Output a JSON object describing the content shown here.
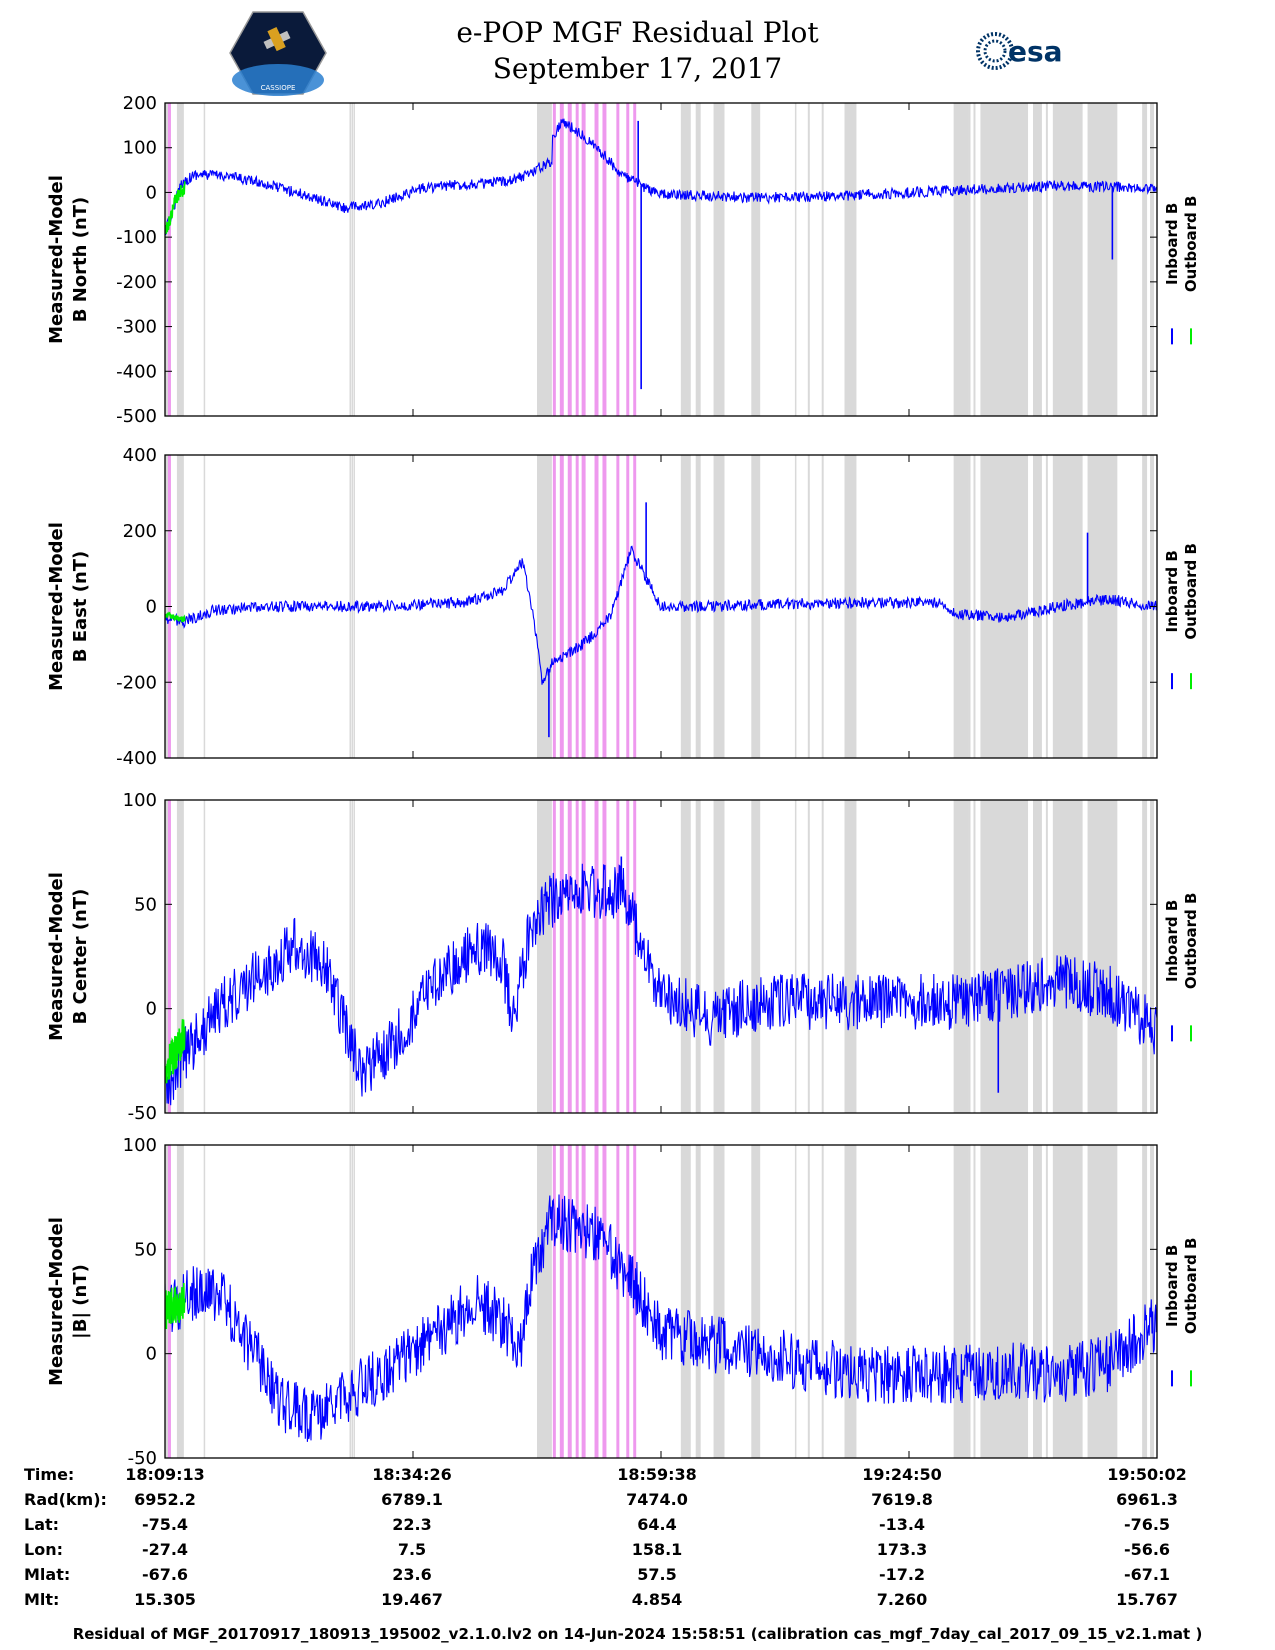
{
  "header": {
    "title": "e-POP MGF Residual Plot",
    "date": "September 17, 2017",
    "mission_logo_text": "CASSIOPE",
    "esa_logo_text": "esa"
  },
  "colors": {
    "inboard": "#0000ff",
    "outboard": "#00ee00",
    "gap_gray": "#d9d9d9",
    "gap_pink": "#ee99ee"
  },
  "chart_data": [
    {
      "type": "line",
      "ylabel_line1": "Measured-Model",
      "ylabel_line2": "B North (nT)",
      "ylim": [
        -500,
        200
      ],
      "yticks": [
        "200",
        "100",
        "0",
        "-100",
        "-200",
        "-300",
        "-400",
        "-500"
      ],
      "legend": [
        "Inboard B",
        "Outboard B"
      ],
      "series": [
        {
          "name": "Inboard B",
          "x": [
            0.0,
            0.008,
            0.016,
            0.03,
            0.06,
            0.1,
            0.14,
            0.18,
            0.21,
            0.24,
            0.26,
            0.3,
            0.33,
            0.36,
            0.39,
            0.37,
            0.385,
            0.4,
            0.42,
            0.44,
            0.46,
            0.48,
            0.5,
            0.55,
            0.6,
            0.68,
            0.75,
            0.8,
            0.85,
            0.9,
            0.95,
            1.0
          ],
          "y": [
            -90,
            -40,
            20,
            40,
            38,
            20,
            -5,
            -35,
            -30,
            -5,
            10,
            18,
            20,
            35,
            70,
            40,
            100,
            160,
            130,
            90,
            40,
            15,
            -5,
            -8,
            -12,
            -8,
            0,
            5,
            10,
            15,
            12,
            8
          ],
          "noise": 12
        },
        {
          "name": "Outboard B",
          "x": [
            0.0,
            0.005,
            0.01,
            0.015,
            0.02
          ],
          "y": [
            -90,
            -60,
            -20,
            0,
            10
          ],
          "noise": 15
        }
      ],
      "spikes": [
        {
          "x": 0.48,
          "y": -440
        },
        {
          "x": 0.477,
          "y": 160
        },
        {
          "x": 0.955,
          "y": -150
        }
      ]
    },
    {
      "type": "line",
      "ylabel_line1": "Measured-Model",
      "ylabel_line2": "B East (nT)",
      "ylim": [
        -400,
        400
      ],
      "yticks": [
        "400",
        "200",
        "0",
        "-200",
        "-400"
      ],
      "legend": [
        "Inboard B",
        "Outboard B"
      ],
      "series": [
        {
          "name": "Inboard B",
          "x": [
            0.0,
            0.02,
            0.05,
            0.1,
            0.2,
            0.3,
            0.34,
            0.36,
            0.37,
            0.38,
            0.39,
            0.41,
            0.43,
            0.45,
            0.47,
            0.49,
            0.5,
            0.55,
            0.6,
            0.7,
            0.78,
            0.8,
            0.85,
            0.9,
            0.95,
            1.0
          ],
          "y": [
            -30,
            -40,
            -10,
            0,
            0,
            10,
            40,
            120,
            0,
            -200,
            -150,
            -120,
            -80,
            -20,
            150,
            50,
            0,
            0,
            5,
            10,
            10,
            -20,
            -30,
            0,
            20,
            0
          ],
          "noise": 15
        },
        {
          "name": "Outboard B",
          "x": [
            0.0,
            0.01,
            0.02
          ],
          "y": [
            -20,
            -30,
            -35
          ],
          "noise": 8
        }
      ],
      "spikes": [
        {
          "x": 0.387,
          "y": -345
        },
        {
          "x": 0.485,
          "y": 275
        },
        {
          "x": 0.93,
          "y": 195
        }
      ]
    },
    {
      "type": "line",
      "ylabel_line1": "Measured-Model",
      "ylabel_line2": "B Center (nT)",
      "ylim": [
        -55,
        100
      ],
      "yticks": [
        "100",
        "50",
        "0",
        "-50"
      ],
      "legend": [
        "Inboard B",
        "Outboard B"
      ],
      "series": [
        {
          "name": "Inboard B",
          "x": [
            0.0,
            0.02,
            0.06,
            0.1,
            0.13,
            0.16,
            0.19,
            0.2,
            0.24,
            0.28,
            0.32,
            0.34,
            0.35,
            0.37,
            0.4,
            0.43,
            0.46,
            0.48,
            0.5,
            0.55,
            0.6,
            0.7,
            0.8,
            0.85,
            0.9,
            0.95,
            1.0
          ],
          "y": [
            -45,
            -25,
            0,
            15,
            28,
            20,
            -25,
            -35,
            -15,
            15,
            28,
            20,
            -10,
            40,
            55,
            55,
            55,
            30,
            5,
            -8,
            0,
            0,
            0,
            5,
            10,
            5,
            -15
          ],
          "noise": 14
        },
        {
          "name": "Outboard B",
          "x": [
            0.0,
            0.01,
            0.02
          ],
          "y": [
            -35,
            -25,
            -15
          ],
          "noise": 10
        }
      ],
      "spikes": [
        {
          "x": 0.46,
          "y": 72
        },
        {
          "x": 0.84,
          "y": -45
        }
      ]
    },
    {
      "type": "line",
      "ylabel_line1": "Measured-Model",
      "ylabel_line2": "|B| (nT)",
      "ylim": [
        -50,
        100
      ],
      "yticks": [
        "100",
        "50",
        "0",
        "-50"
      ],
      "legend": [
        "Inboard B",
        "Outboard B"
      ],
      "series": [
        {
          "name": "Inboard B",
          "x": [
            0.0,
            0.03,
            0.06,
            0.09,
            0.12,
            0.15,
            0.18,
            0.22,
            0.26,
            0.29,
            0.31,
            0.33,
            0.36,
            0.37,
            0.39,
            0.42,
            0.44,
            0.47,
            0.5,
            0.55,
            0.6,
            0.65,
            0.7,
            0.75,
            0.8,
            0.85,
            0.9,
            0.95,
            1.0
          ],
          "y": [
            20,
            30,
            25,
            0,
            -25,
            -30,
            -20,
            -10,
            5,
            15,
            25,
            20,
            5,
            40,
            65,
            60,
            55,
            35,
            10,
            5,
            0,
            -5,
            -10,
            -10,
            -10,
            -8,
            -10,
            -5,
            15
          ],
          "noise": 14
        },
        {
          "name": "Outboard B",
          "x": [
            0.0,
            0.01,
            0.02
          ],
          "y": [
            20,
            24,
            25
          ],
          "noise": 10
        }
      ],
      "spikes": []
    }
  ],
  "gaps": {
    "gray": [
      [
        0.0,
        0.003
      ],
      [
        0.012,
        0.019
      ],
      [
        0.039,
        0.04
      ],
      [
        0.186,
        0.187
      ],
      [
        0.188,
        0.189
      ],
      [
        0.19,
        0.191
      ],
      [
        0.375,
        0.39
      ],
      [
        0.52,
        0.53
      ],
      [
        0.535,
        0.54
      ],
      [
        0.553,
        0.564
      ],
      [
        0.591,
        0.6
      ],
      [
        0.635,
        0.636
      ],
      [
        0.648,
        0.65
      ],
      [
        0.662,
        0.664
      ],
      [
        0.685,
        0.697
      ],
      [
        0.795,
        0.81
      ],
      [
        0.81,
        0.812
      ],
      [
        0.815,
        0.817
      ],
      [
        0.822,
        0.87
      ],
      [
        0.875,
        0.884
      ],
      [
        0.888,
        0.89
      ],
      [
        0.895,
        0.925
      ],
      [
        0.93,
        0.96
      ],
      [
        0.985,
        0.99
      ],
      [
        0.993,
        0.997
      ]
    ],
    "pink": [
      [
        0.003,
        0.006
      ],
      [
        0.391,
        0.394
      ],
      [
        0.398,
        0.402
      ],
      [
        0.406,
        0.41
      ],
      [
        0.414,
        0.417
      ],
      [
        0.42,
        0.424
      ],
      [
        0.433,
        0.437
      ],
      [
        0.441,
        0.445
      ],
      [
        0.455,
        0.458
      ],
      [
        0.465,
        0.468
      ],
      [
        0.472,
        0.475
      ]
    ]
  },
  "info": {
    "labels": [
      "Time:",
      "Rad(km):",
      "Lat:",
      "Lon:",
      "Mlat:",
      "Mlt:"
    ],
    "columns": [
      {
        "Time": "18:09:13",
        "Rad": "6952.2",
        "Lat": "-75.4",
        "Lon": "-27.4",
        "Mlat": "-67.6",
        "Mlt": "15.305"
      },
      {
        "Time": "18:34:26",
        "Rad": "6789.1",
        "Lat": "22.3",
        "Lon": "7.5",
        "Mlat": "23.6",
        "Mlt": "19.467"
      },
      {
        "Time": "18:59:38",
        "Rad": "7474.0",
        "Lat": "64.4",
        "Lon": "158.1",
        "Mlat": "57.5",
        "Mlt": "4.854"
      },
      {
        "Time": "19:24:50",
        "Rad": "7619.8",
        "Lat": "-13.4",
        "Lon": "173.3",
        "Mlat": "-17.2",
        "Mlt": "7.260"
      },
      {
        "Time": "19:50:02",
        "Rad": "6961.3",
        "Lat": "-76.5",
        "Lon": "-56.6",
        "Mlat": "-67.1",
        "Mlt": "15.767"
      }
    ]
  },
  "footer": "Residual of MGF_20170917_180913_195002_v2.1.0.lv2 on 14-Jun-2024 15:58:51 (calibration cas_mgf_7day_cal_2017_09_15_v2.1.mat )"
}
